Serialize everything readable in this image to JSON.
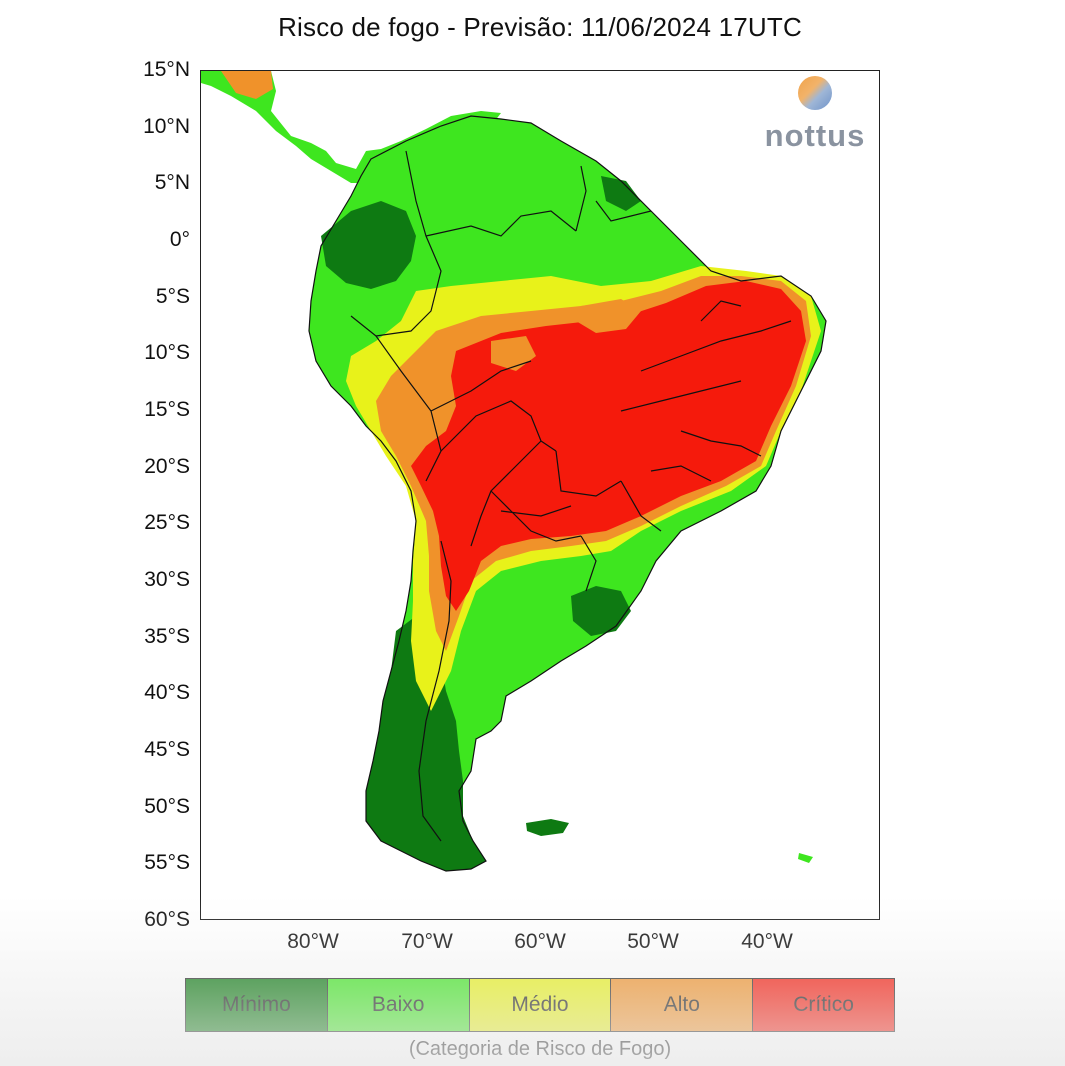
{
  "title": "Risco de fogo - Previsão: 11/06/2024 17UTC",
  "logo_text": "nottus",
  "latitudes": [
    "15°N",
    "10°N",
    "5°N",
    "0°",
    "5°S",
    "10°S",
    "15°S",
    "20°S",
    "25°S",
    "30°S",
    "35°S",
    "40°S",
    "45°S",
    "50°S",
    "55°S",
    "60°S"
  ],
  "longitudes": [
    "80°W",
    "70°W",
    "60°W",
    "50°W",
    "40°W"
  ],
  "legend": {
    "categories": [
      {
        "label": "Mínimo",
        "color": "#0e7a12"
      },
      {
        "label": "Baixo",
        "color": "#3ee61f"
      },
      {
        "label": "Médio",
        "color": "#e8f21a"
      },
      {
        "label": "Alto",
        "color": "#f0922a"
      },
      {
        "label": "Crítico",
        "color": "#f51a0c"
      }
    ],
    "caption": "(Categoria de Risco de Fogo)"
  },
  "colors": {
    "minimo": "#0e7a12",
    "baixo": "#3ee61f",
    "medio": "#e8f21a",
    "alto": "#f0922a",
    "critico": "#f51a0c",
    "border": "#111111"
  }
}
